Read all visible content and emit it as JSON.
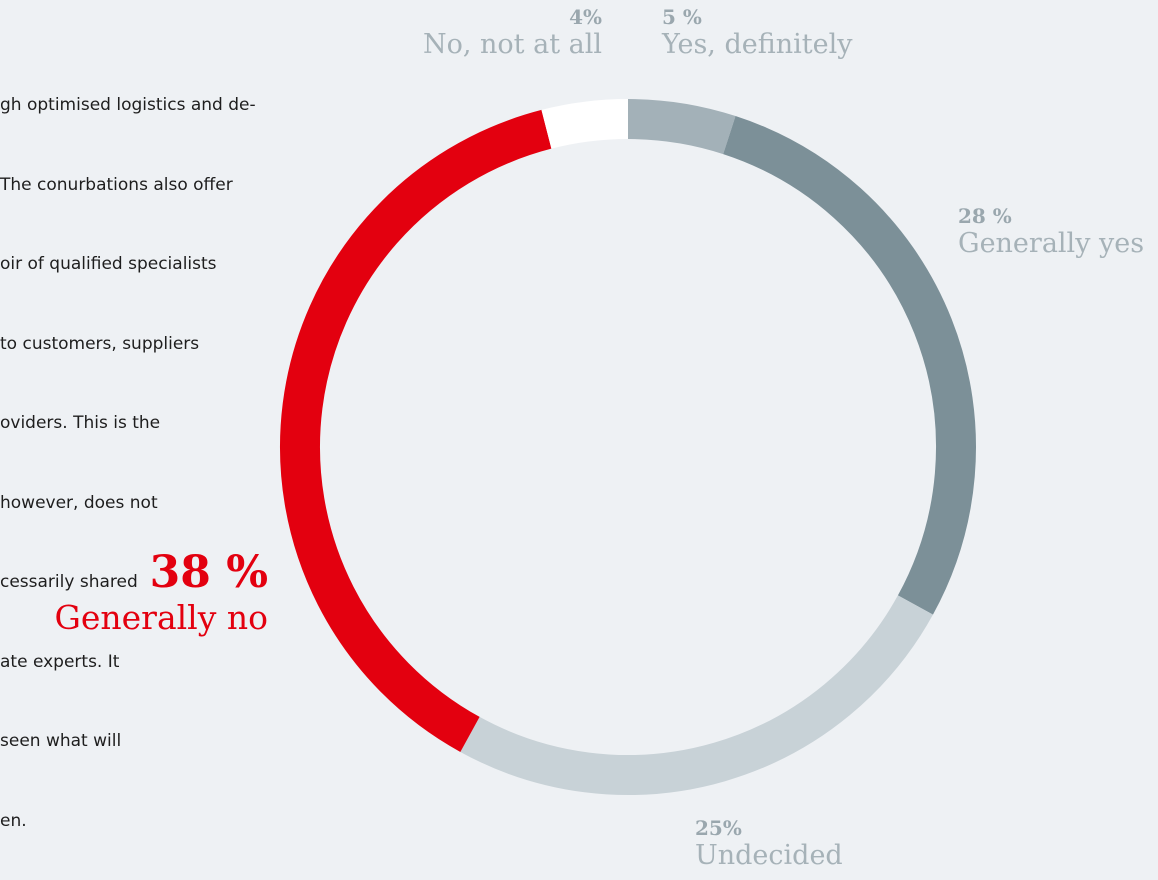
{
  "body_text": {
    "lines": [
      "",
      "gh optimised logistics and de-",
      "The conurbations also offer",
      "oir of qualified specialists",
      "to customers, suppliers",
      "oviders. This is the",
      "however, does not",
      "cessarily shared",
      "ate experts. It",
      "seen what will",
      "en."
    ]
  },
  "chart_data": {
    "type": "pie",
    "style": "donut",
    "slices": [
      {
        "label": "Yes, definitely",
        "percent_label": "5 %",
        "value": 5,
        "color": "#a3b1b8"
      },
      {
        "label": "Generally yes",
        "percent_label": "28 %",
        "value": 28,
        "color": "#7c9098"
      },
      {
        "label": "Undecided",
        "percent_label": "25%",
        "value": 25,
        "color": "#c8d2d7"
      },
      {
        "label": "Generally no",
        "percent_label": "38 %",
        "value": 38,
        "color": "#e3000f"
      },
      {
        "label": "No, not at all",
        "percent_label": "4%",
        "value": 4,
        "color": "#ffffff"
      }
    ],
    "label_colors": {
      "default_pct": "#9aa7ae",
      "default_cat": "#a6b2b8",
      "highlight": "#e3000f"
    }
  }
}
